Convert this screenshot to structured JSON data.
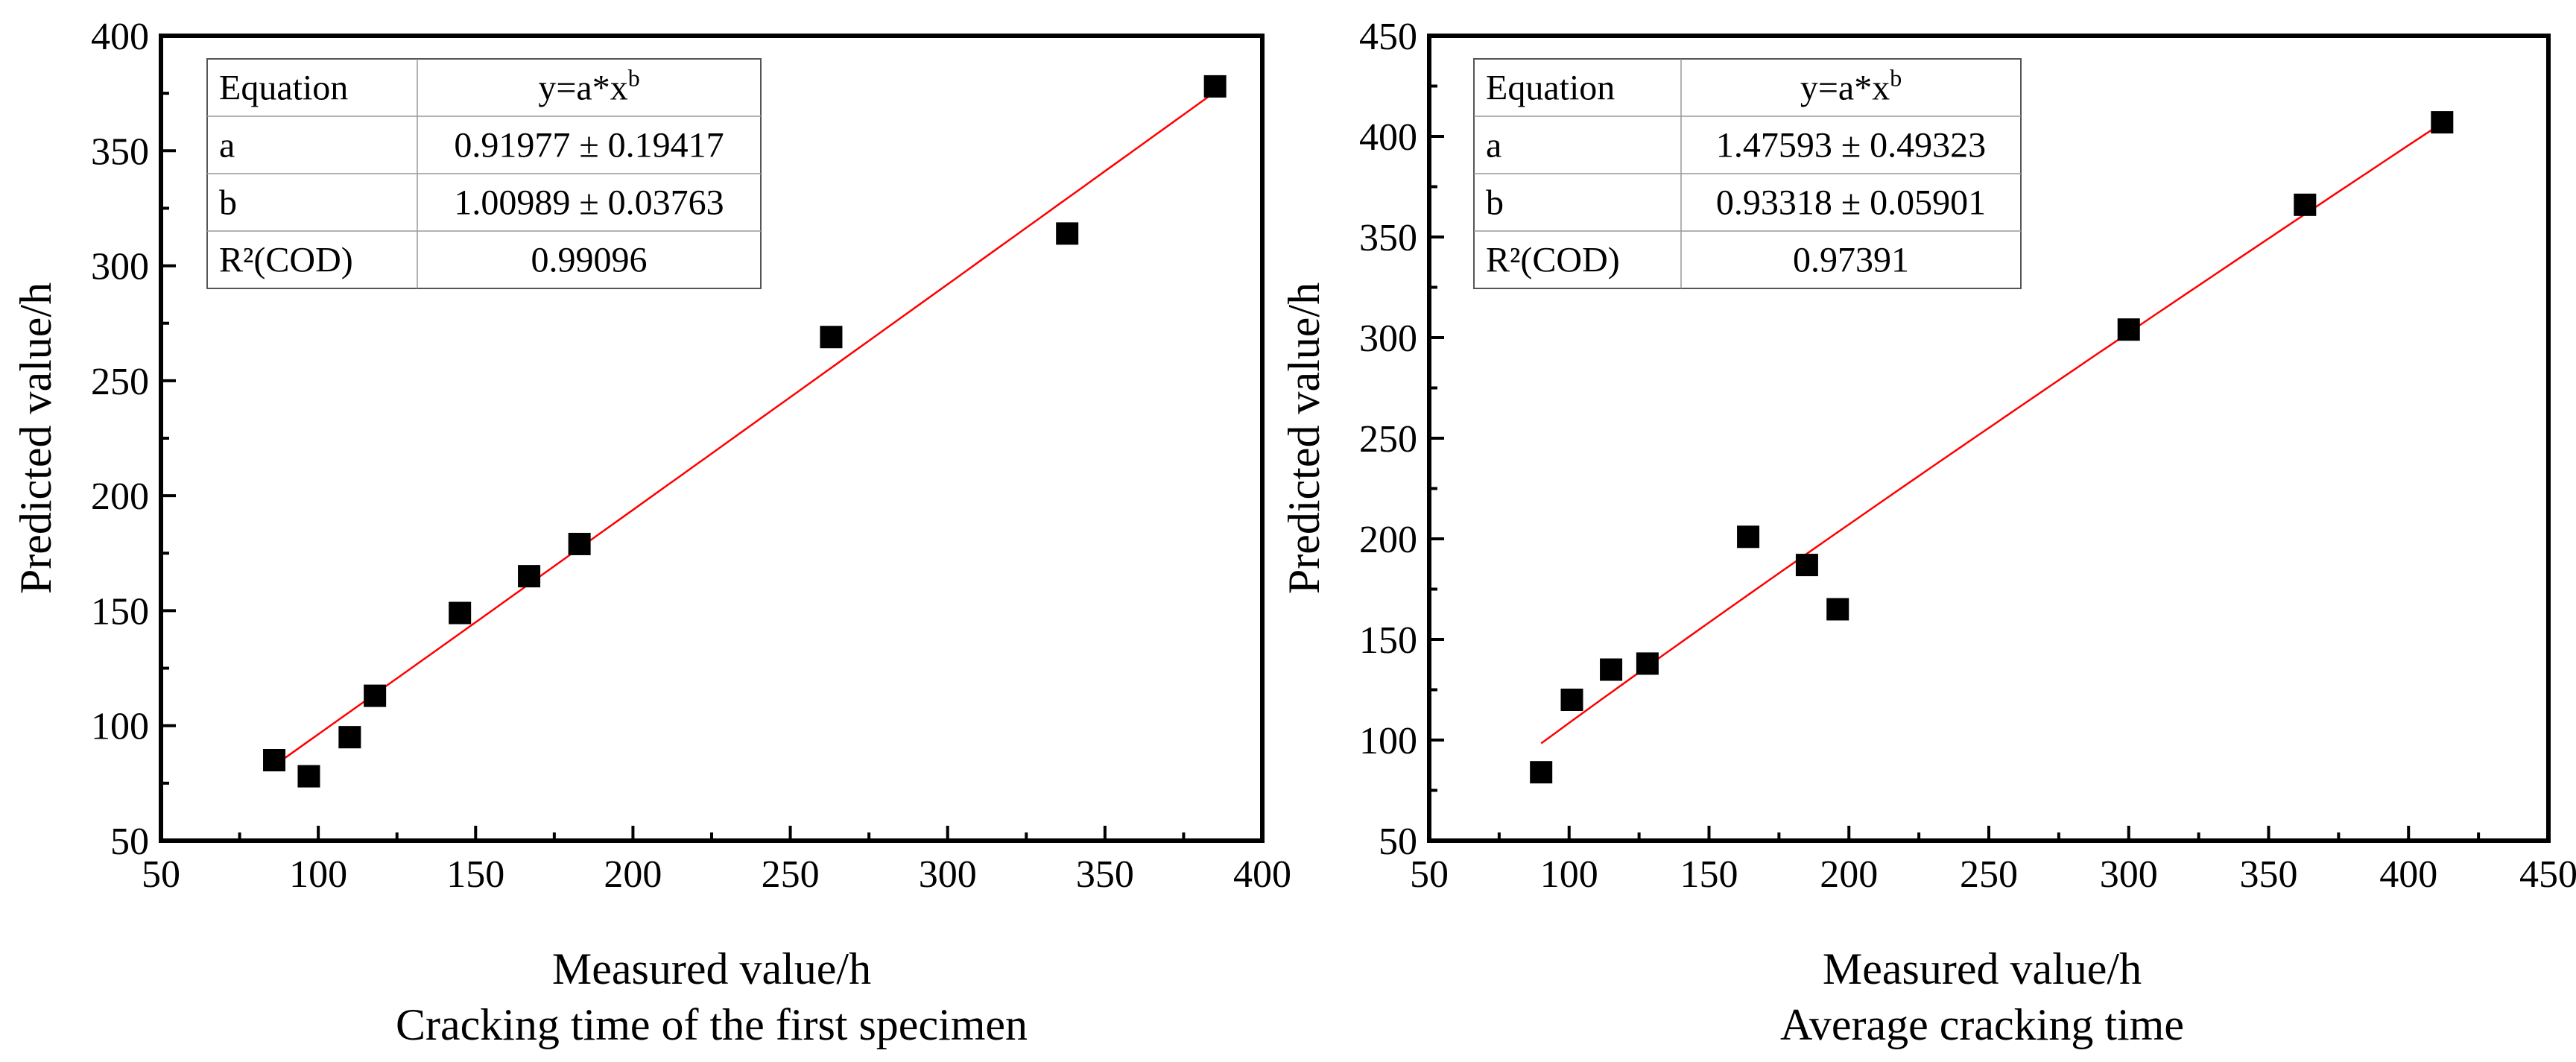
{
  "chart_data": [
    {
      "type": "scatter",
      "id": "left",
      "title": "Cracking time of the first specimen",
      "xlabel": "Measured value/h",
      "ylabel": "Predicted value/h",
      "xlim": [
        50,
        400
      ],
      "ylim": [
        50,
        400
      ],
      "xticks": [
        50,
        100,
        150,
        200,
        250,
        300,
        350,
        400
      ],
      "yticks": [
        50,
        100,
        150,
        200,
        250,
        300,
        350,
        400
      ],
      "points": [
        {
          "x": 86,
          "y": 85
        },
        {
          "x": 97,
          "y": 78
        },
        {
          "x": 110,
          "y": 95
        },
        {
          "x": 118,
          "y": 113
        },
        {
          "x": 145,
          "y": 149
        },
        {
          "x": 167,
          "y": 165
        },
        {
          "x": 183,
          "y": 179
        },
        {
          "x": 263,
          "y": 269
        },
        {
          "x": 338,
          "y": 314
        },
        {
          "x": 385,
          "y": 378
        }
      ],
      "fit": {
        "a": 0.91977,
        "b": 1.00989,
        "x_range": [
          86,
          385
        ]
      },
      "table": {
        "rows": [
          [
            "Equation",
            "y=a*x",
            "b"
          ],
          [
            "a",
            "0.91977 ± 0.19417",
            ""
          ],
          [
            "b",
            "1.00989 ± 0.03763",
            ""
          ],
          [
            "R²(COD)",
            "0.99096",
            ""
          ]
        ]
      }
    },
    {
      "type": "scatter",
      "id": "right",
      "title": "Average cracking time",
      "xlabel": "Measured value/h",
      "ylabel": "Predicted value/h",
      "xlim": [
        50,
        450
      ],
      "ylim": [
        50,
        450
      ],
      "xticks": [
        50,
        100,
        150,
        200,
        250,
        300,
        350,
        400,
        450
      ],
      "yticks": [
        50,
        100,
        150,
        200,
        250,
        300,
        350,
        400,
        450
      ],
      "points": [
        {
          "x": 90,
          "y": 84
        },
        {
          "x": 101,
          "y": 120
        },
        {
          "x": 115,
          "y": 135
        },
        {
          "x": 128,
          "y": 138
        },
        {
          "x": 164,
          "y": 201
        },
        {
          "x": 185,
          "y": 187
        },
        {
          "x": 196,
          "y": 165
        },
        {
          "x": 300,
          "y": 304
        },
        {
          "x": 363,
          "y": 366
        },
        {
          "x": 412,
          "y": 407
        }
      ],
      "fit": {
        "a": 1.47593,
        "b": 0.93318,
        "x_range": [
          90,
          412
        ]
      },
      "table": {
        "rows": [
          [
            "Equation",
            "y=a*x",
            "b"
          ],
          [
            "a",
            "1.47593 ± 0.49323",
            ""
          ],
          [
            "b",
            "0.93318 ± 0.05901",
            ""
          ],
          [
            "R²(COD)",
            "0.97391",
            ""
          ]
        ]
      }
    }
  ]
}
